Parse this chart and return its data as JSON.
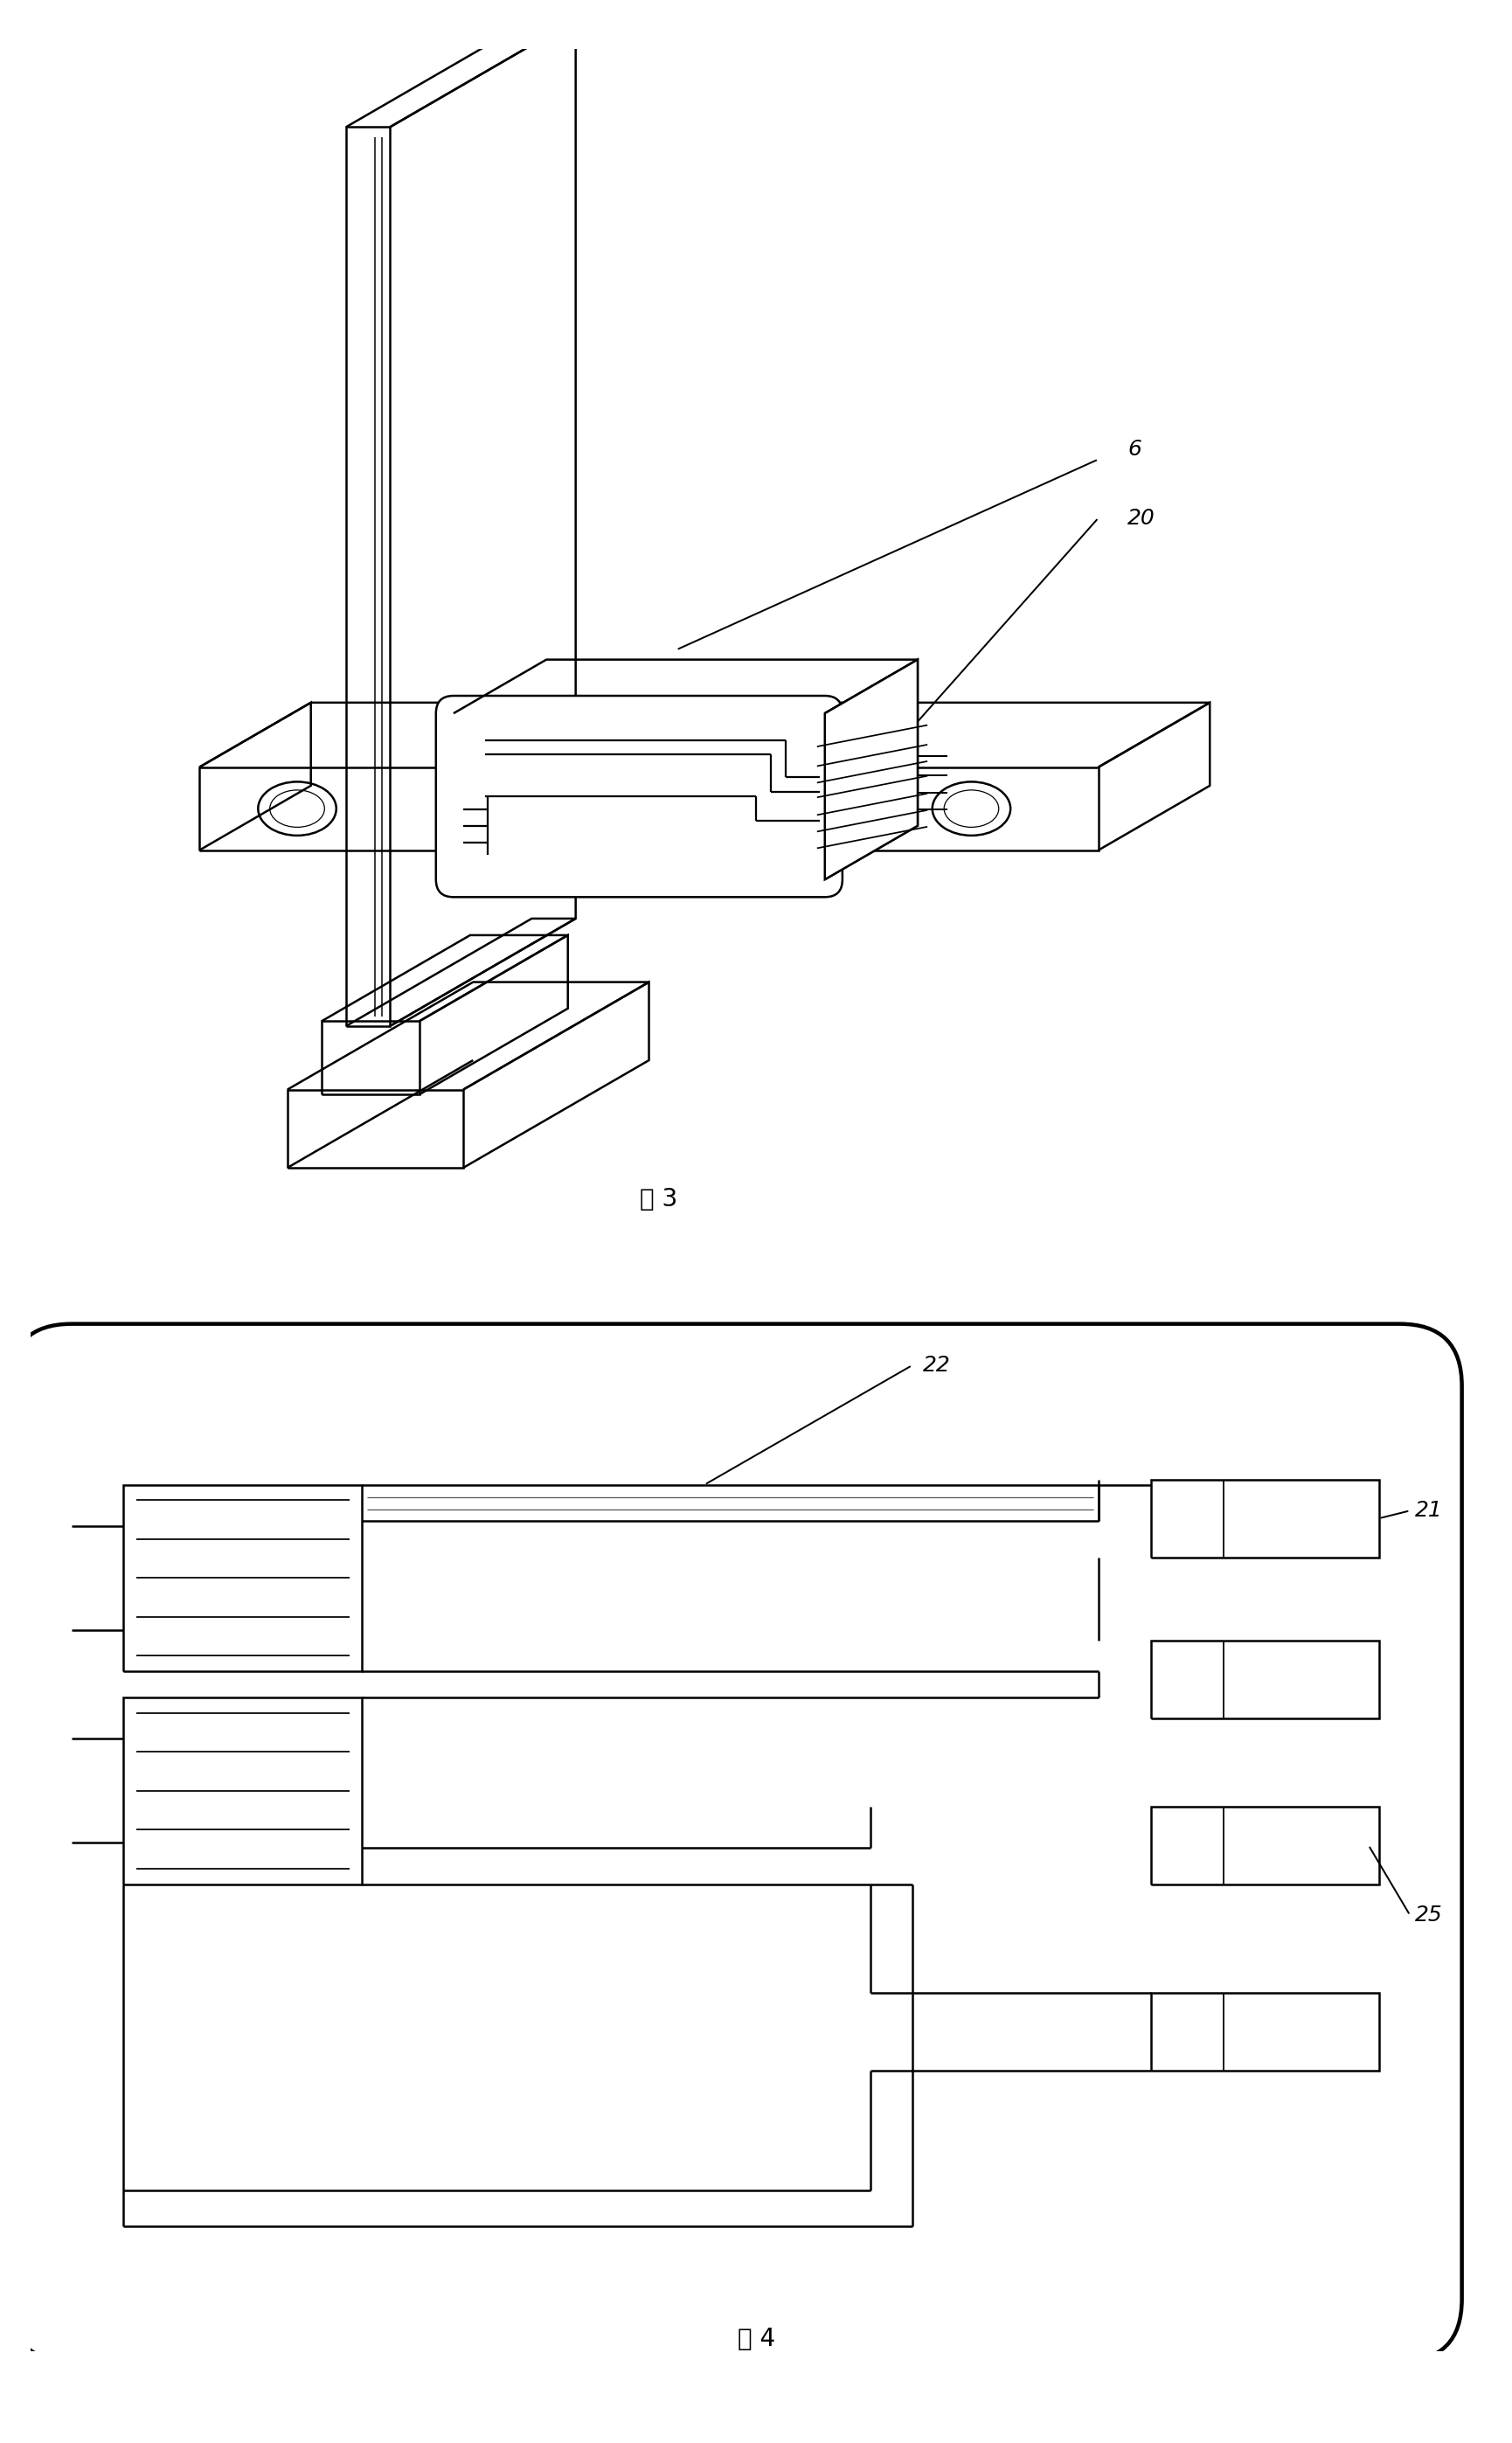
{
  "fig3_label": "图 3",
  "fig4_label": "图 4",
  "label_6": "6",
  "label_20": "20",
  "label_22": "22",
  "label_21": "21",
  "label_25": "25",
  "bg_color": "#ffffff",
  "line_color": "#000000",
  "lw": 1.8,
  "ann_fs": 18
}
